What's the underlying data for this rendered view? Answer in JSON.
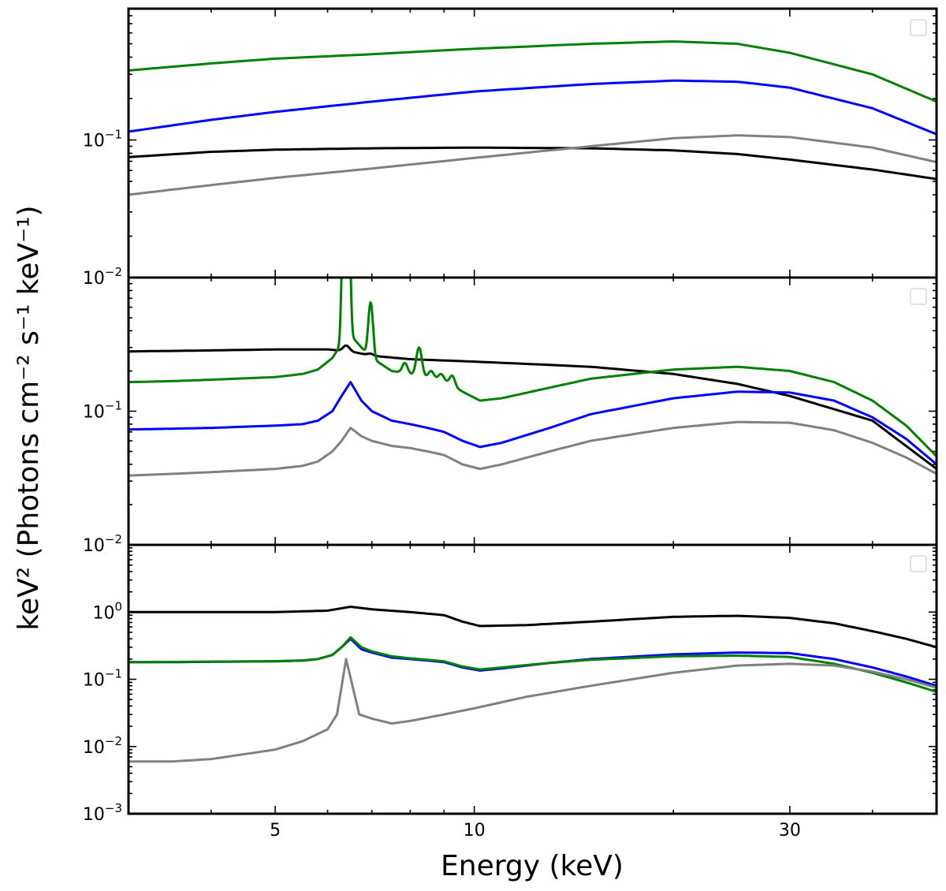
{
  "chart_data": {
    "type": "line",
    "xlabel": "Energy (keV)",
    "ylabel": "keV² (Photons cm⁻² s⁻¹ keV⁻¹)",
    "xscale": "log",
    "yscale": "log",
    "xlim": [
      3,
      50
    ],
    "x_ticks": [
      {
        "value": 5,
        "label": "5"
      },
      {
        "value": 10,
        "label": "10"
      },
      {
        "value": 30,
        "label": "30"
      }
    ],
    "series_colors": {
      "black": "#000000",
      "blue": "#0000ff",
      "green": "#008000",
      "gray": "#808080"
    },
    "panels": [
      {
        "ylim": [
          0.01,
          0.9
        ],
        "y_ticks": [
          {
            "value": 0.1,
            "base": "10",
            "exp": "−1"
          },
          {
            "value": 0.01,
            "base": "10",
            "exp": "−2"
          }
        ],
        "series": [
          {
            "name": "green",
            "color": "#008000",
            "lines": [],
            "x": [
              3,
              4,
              5,
              7,
              10,
              15,
              20,
              25,
              30,
              40,
              50
            ],
            "y": [
              0.32,
              0.36,
              0.39,
              0.42,
              0.46,
              0.5,
              0.52,
              0.5,
              0.43,
              0.3,
              0.19
            ]
          },
          {
            "name": "blue",
            "color": "#0000ff",
            "lines": [],
            "x": [
              3,
              4,
              5,
              7,
              10,
              15,
              20,
              25,
              30,
              40,
              50
            ],
            "y": [
              0.115,
              0.14,
              0.16,
              0.19,
              0.225,
              0.255,
              0.27,
              0.265,
              0.24,
              0.17,
              0.11
            ]
          },
          {
            "name": "black",
            "color": "#000000",
            "lines": [],
            "x": [
              3,
              4,
              5,
              7,
              10,
              15,
              20,
              25,
              30,
              40,
              50
            ],
            "y": [
              0.075,
              0.082,
              0.085,
              0.087,
              0.088,
              0.087,
              0.084,
              0.079,
              0.072,
              0.061,
              0.052
            ]
          },
          {
            "name": "gray",
            "color": "#808080",
            "lines": [],
            "x": [
              3,
              4,
              5,
              7,
              10,
              15,
              20,
              25,
              30,
              40,
              50
            ],
            "y": [
              0.04,
              0.047,
              0.053,
              0.062,
              0.074,
              0.09,
              0.103,
              0.108,
              0.105,
              0.088,
              0.069
            ]
          }
        ]
      },
      {
        "ylim": [
          0.01,
          1.0
        ],
        "y_ticks": [
          {
            "value": 0.1,
            "base": "10",
            "exp": "−1"
          },
          {
            "value": 0.01,
            "base": "10",
            "exp": "−2"
          }
        ],
        "series": [
          {
            "name": "black",
            "color": "#000000",
            "x": [
              3,
              4,
              5,
              6,
              6.5,
              7,
              8,
              10,
              15,
              20,
              25,
              30,
              40,
              50
            ],
            "y": [
              0.28,
              0.285,
              0.29,
              0.29,
              0.28,
              0.26,
              0.245,
              0.235,
              0.215,
              0.19,
              0.16,
              0.13,
              0.085,
              0.037
            ],
            "lines": [
              {
                "e": 6.4,
                "peak": 0.31,
                "w": 0.03
              },
              {
                "e": 6.95,
                "peak": 0.27,
                "w": 0.03
              }
            ]
          },
          {
            "name": "green",
            "color": "#008000",
            "x": [
              3,
              3.5,
              4,
              5,
              5.5,
              5.8,
              6.1,
              6.3,
              6.5,
              6.75,
              7.0,
              7.5,
              8,
              8.5,
              9.0,
              9.6,
              10.2,
              11,
              13,
              15,
              20,
              25,
              30,
              35,
              40,
              45,
              50
            ],
            "y": [
              0.165,
              0.168,
              0.172,
              0.18,
              0.19,
              0.205,
              0.25,
              0.32,
              0.37,
              0.3,
              0.25,
              0.2,
              0.19,
              0.18,
              0.17,
              0.14,
              0.12,
              0.125,
              0.15,
              0.175,
              0.205,
              0.215,
              0.2,
              0.165,
              0.12,
              0.078,
              0.046
            ],
            "lines": [
              {
                "e": 6.4,
                "peak": 10.0,
                "w": 0.02
              },
              {
                "e": 6.97,
                "peak": 0.65,
                "w": 0.02
              },
              {
                "e": 7.85,
                "peak": 0.23,
                "w": 0.025
              },
              {
                "e": 8.25,
                "peak": 0.3,
                "w": 0.025
              },
              {
                "e": 8.6,
                "peak": 0.2,
                "w": 0.025
              },
              {
                "e": 8.9,
                "peak": 0.19,
                "w": 0.025
              },
              {
                "e": 9.25,
                "peak": 0.185,
                "w": 0.025
              }
            ]
          },
          {
            "name": "blue",
            "color": "#0000ff",
            "x": [
              3,
              3.5,
              4,
              5,
              5.5,
              5.8,
              6.1,
              6.3,
              6.5,
              6.75,
              7.0,
              7.5,
              8,
              8.5,
              9.0,
              9.6,
              10.2,
              11,
              13,
              15,
              20,
              25,
              30,
              35,
              40,
              45,
              50
            ],
            "y": [
              0.073,
              0.074,
              0.075,
              0.078,
              0.08,
              0.085,
              0.1,
              0.13,
              0.165,
              0.12,
              0.1,
              0.085,
              0.08,
              0.075,
              0.07,
              0.06,
              0.054,
              0.058,
              0.075,
              0.095,
              0.125,
              0.14,
              0.138,
              0.12,
              0.09,
              0.062,
              0.04
            ]
          },
          {
            "name": "gray",
            "color": "#808080",
            "x": [
              3,
              3.5,
              4,
              5,
              5.5,
              5.8,
              6.1,
              6.3,
              6.5,
              6.75,
              7.0,
              7.5,
              8,
              8.5,
              9.0,
              9.6,
              10.2,
              11,
              13,
              15,
              20,
              25,
              30,
              35,
              40,
              45,
              50
            ],
            "y": [
              0.033,
              0.034,
              0.035,
              0.037,
              0.039,
              0.042,
              0.05,
              0.06,
              0.075,
              0.065,
              0.06,
              0.055,
              0.053,
              0.05,
              0.047,
              0.04,
              0.037,
              0.04,
              0.05,
              0.06,
              0.075,
              0.083,
              0.082,
              0.072,
              0.058,
              0.045,
              0.034
            ]
          }
        ]
      },
      {
        "ylim": [
          0.001,
          10
        ],
        "y_ticks": [
          {
            "value": 1,
            "base": "10",
            "exp": "0"
          },
          {
            "value": 0.1,
            "base": "10",
            "exp": "−1"
          },
          {
            "value": 0.01,
            "base": "10",
            "exp": "−2"
          },
          {
            "value": 0.001,
            "base": "10",
            "exp": "−3"
          }
        ],
        "series": [
          {
            "name": "black",
            "color": "#000000",
            "x": [
              3,
              4,
              5,
              6,
              6.5,
              7,
              8,
              9,
              9.6,
              10.2,
              12,
              15,
              20,
              25,
              30,
              35,
              40,
              45,
              50
            ],
            "y": [
              1.0,
              1.0,
              1.0,
              1.05,
              1.2,
              1.1,
              1.0,
              0.9,
              0.72,
              0.62,
              0.64,
              0.72,
              0.85,
              0.88,
              0.82,
              0.68,
              0.52,
              0.4,
              0.3
            ]
          },
          {
            "name": "blue",
            "color": "#0000ff",
            "x": [
              3,
              3.5,
              4,
              5,
              5.5,
              5.8,
              6.1,
              6.3,
              6.5,
              6.75,
              7.0,
              7.5,
              8,
              8.5,
              9.0,
              9.6,
              10.2,
              11,
              13,
              15,
              20,
              25,
              30,
              35,
              40,
              45,
              50
            ],
            "y": [
              0.18,
              0.18,
              0.182,
              0.185,
              0.19,
              0.2,
              0.23,
              0.3,
              0.4,
              0.28,
              0.25,
              0.21,
              0.2,
              0.19,
              0.18,
              0.15,
              0.135,
              0.145,
              0.175,
              0.2,
              0.235,
              0.25,
              0.245,
              0.2,
              0.15,
              0.11,
              0.08
            ]
          },
          {
            "name": "green",
            "color": "#008000",
            "x": [
              3,
              3.5,
              4,
              5,
              5.5,
              5.8,
              6.1,
              6.3,
              6.5,
              6.75,
              7.0,
              7.5,
              8,
              8.5,
              9.0,
              9.6,
              10.2,
              11,
              13,
              15,
              20,
              25,
              30,
              35,
              40,
              45,
              50
            ],
            "y": [
              0.18,
              0.181,
              0.183,
              0.186,
              0.19,
              0.2,
              0.23,
              0.3,
              0.42,
              0.3,
              0.26,
              0.22,
              0.205,
              0.195,
              0.185,
              0.155,
              0.14,
              0.15,
              0.175,
              0.195,
              0.22,
              0.225,
              0.215,
              0.17,
              0.125,
              0.09,
              0.065
            ]
          },
          {
            "name": "gray",
            "color": "#808080",
            "x": [
              3,
              3.5,
              4,
              5,
              5.5,
              6.0,
              6.2,
              6.4,
              6.7,
              7.0,
              7.5,
              8,
              9,
              10,
              12,
              15,
              20,
              25,
              30,
              35,
              40,
              45,
              50
            ],
            "y": [
              0.006,
              0.006,
              0.0065,
              0.009,
              0.012,
              0.018,
              0.03,
              0.2,
              0.03,
              0.026,
              0.022,
              0.024,
              0.03,
              0.037,
              0.055,
              0.08,
              0.125,
              0.16,
              0.17,
              0.16,
              0.13,
              0.1,
              0.075
            ]
          }
        ]
      }
    ]
  }
}
